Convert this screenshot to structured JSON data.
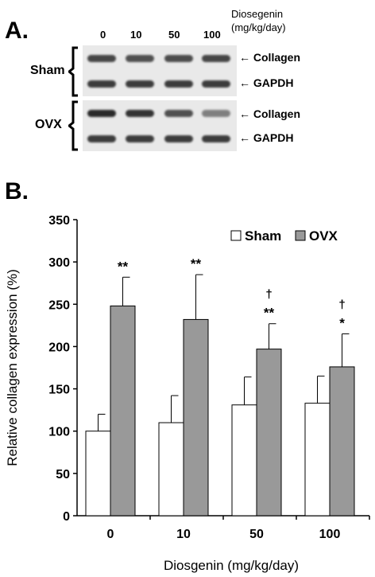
{
  "panelA": {
    "label": "A.",
    "doses": [
      "0",
      "10",
      "50",
      "100"
    ],
    "drug_label_line1": "Diosegenin",
    "drug_label_line2": "(mg/kg/day)",
    "groups": [
      {
        "name": "Sham",
        "rows": [
          {
            "name": "Collagen",
            "arrow_label": "← Collagen",
            "intensity": [
              0.85,
              0.8,
              0.82,
              0.85
            ]
          },
          {
            "name": "GAPDH",
            "arrow_label": "← GAPDH",
            "intensity": [
              0.9,
              0.9,
              0.9,
              0.9
            ]
          }
        ]
      },
      {
        "name": "OVX",
        "rows": [
          {
            "name": "Collagen",
            "arrow_label": "← Collagen",
            "intensity": [
              1.0,
              0.95,
              0.8,
              0.55
            ]
          },
          {
            "name": "GAPDH",
            "arrow_label": "← GAPDH",
            "intensity": [
              0.9,
              0.9,
              0.9,
              0.9
            ]
          }
        ]
      }
    ]
  },
  "panelB": {
    "label": "B."
  },
  "colors": {
    "sham": "#ffffff",
    "ovx": "#999999",
    "band": "#2a2a2a",
    "membrane": "#e9e9e9"
  },
  "chart_data": {
    "type": "bar",
    "categories": [
      "0",
      "10",
      "50",
      "100"
    ],
    "xlabel": "Diosgenin (mg/kg/day)",
    "ylabel": "Relative collagen expression (%)",
    "ylim": [
      0,
      350
    ],
    "yticks": [
      0,
      50,
      100,
      150,
      200,
      250,
      300,
      350
    ],
    "legend_position": "top-right",
    "series": [
      {
        "name": "Sham",
        "values": [
          100,
          110,
          131,
          133
        ],
        "errors": [
          20,
          32,
          33,
          32
        ]
      },
      {
        "name": "OVX",
        "values": [
          248,
          232,
          197,
          176
        ],
        "errors": [
          34,
          53,
          30,
          39
        ]
      }
    ],
    "annotations": [
      {
        "category": "0",
        "series": "OVX",
        "text": "**"
      },
      {
        "category": "10",
        "series": "OVX",
        "text": "**"
      },
      {
        "category": "50",
        "series": "OVX",
        "text": "**"
      },
      {
        "category": "50",
        "series": "OVX",
        "text": "†"
      },
      {
        "category": "100",
        "series": "OVX",
        "text": "*"
      },
      {
        "category": "100",
        "series": "OVX",
        "text": "†"
      }
    ]
  }
}
